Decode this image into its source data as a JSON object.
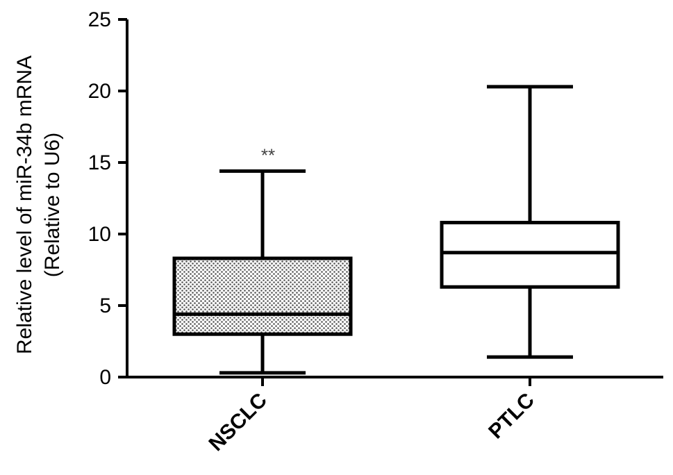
{
  "chart_data": {
    "type": "box",
    "ylabel_line1": "Relative level of miR-34b mRNA",
    "ylabel_line2": "(Relative to U6)",
    "ylim": [
      0,
      25
    ],
    "yticks": [
      "0",
      "5",
      "10",
      "15",
      "20",
      "25"
    ],
    "ytick_values": [
      0,
      5,
      10,
      15,
      20,
      25
    ],
    "grid": false,
    "categories": [
      "NSCLC",
      "PTLC"
    ],
    "boxes": [
      {
        "category": "NSCLC",
        "min": 0.3,
        "q1": 3.0,
        "median": 4.4,
        "q3": 8.3,
        "max": 14.4,
        "fill": "hatched",
        "annotation": "**"
      },
      {
        "category": "PTLC",
        "min": 1.4,
        "q1": 6.3,
        "median": 8.7,
        "q3": 10.8,
        "max": 20.3,
        "fill": "white",
        "annotation": ""
      }
    ]
  }
}
